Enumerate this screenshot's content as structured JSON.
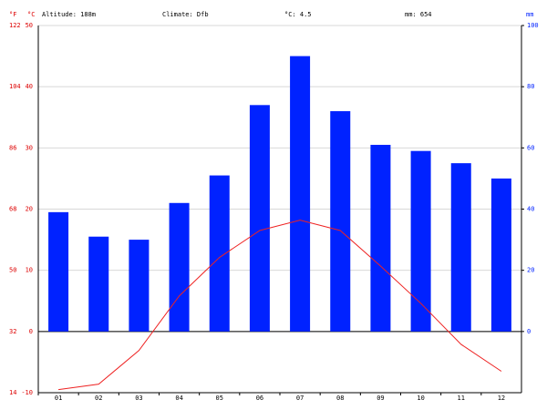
{
  "chart_data": {
    "type": "combo",
    "header": {
      "altitude": "Altitude: 188m",
      "climate": "Climate: Dfb",
      "temperature": "°C: 4.5",
      "precipitation": "mm: 654"
    },
    "y_unit_f": "°F",
    "y_unit": "°C",
    "y2_unit": "mm",
    "categories": [
      "01",
      "02",
      "03",
      "04",
      "05",
      "06",
      "07",
      "08",
      "09",
      "10",
      "11",
      "12"
    ],
    "series": [
      {
        "type": "bar",
        "axis": "y2",
        "color": "#0022ff",
        "values": [
          39,
          31,
          30,
          42,
          51,
          74,
          90,
          72,
          61,
          59,
          55,
          50
        ]
      },
      {
        "type": "line",
        "color": "#ee2222",
        "values": [
          -9.5,
          -8.6,
          -3.1,
          5.8,
          12.1,
          16.5,
          18.2,
          16.5,
          10.7,
          4.6,
          -2.1,
          -6.5
        ]
      }
    ],
    "ylim": [
      -10,
      50
    ],
    "yticks": [
      -10,
      0,
      10,
      20,
      30,
      40,
      50
    ],
    "fticks": [
      {
        "value": -10,
        "label": "14"
      },
      {
        "value": 0,
        "label": "32"
      },
      {
        "value": 10,
        "label": "50"
      },
      {
        "value": 20,
        "label": "68"
      },
      {
        "value": 30,
        "label": "86"
      },
      {
        "value": 40,
        "label": "104"
      },
      {
        "value": 50,
        "label": "122"
      }
    ],
    "y2lim": [
      -20,
      100
    ],
    "y2ticks": [
      0,
      20,
      40,
      60,
      80,
      100
    ],
    "grid": true,
    "zero_line": true
  }
}
